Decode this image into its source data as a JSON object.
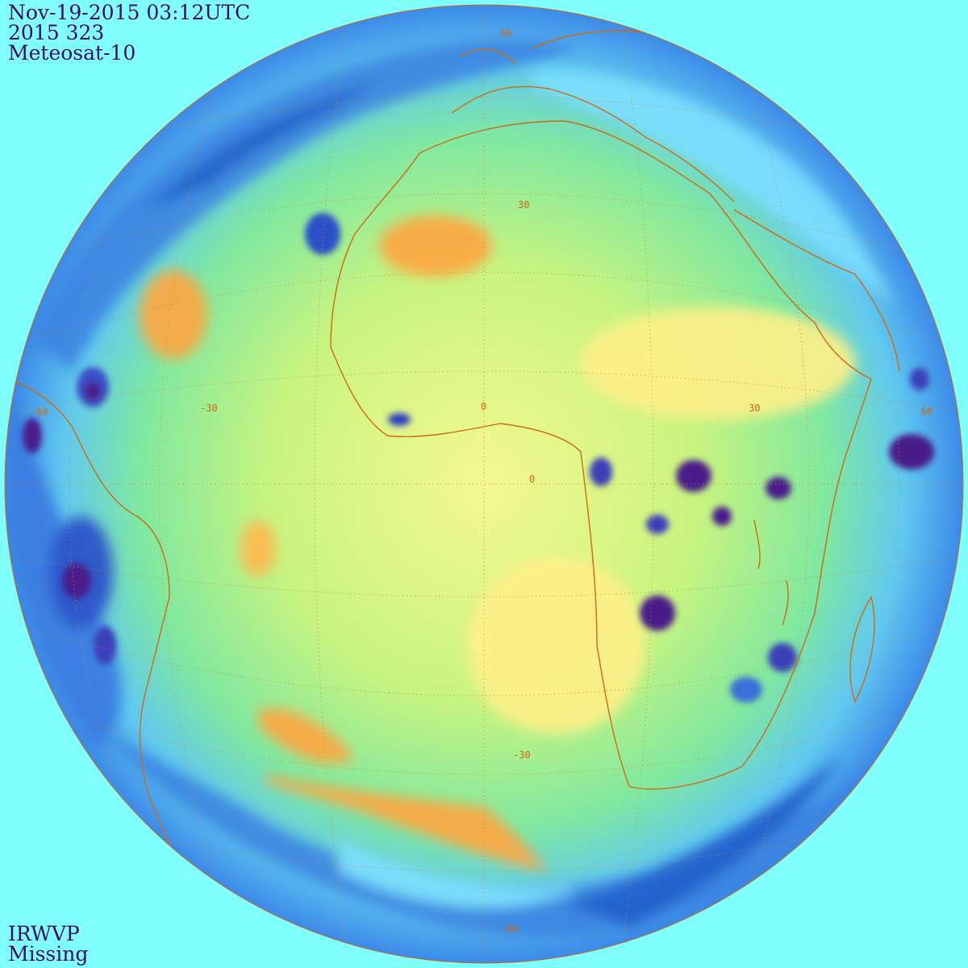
{
  "header": {
    "datetime": "Nov-19-2015 03:12UTC",
    "julian": "2015 323",
    "satellite": "Meteosat-10"
  },
  "footer": {
    "product": "IRWVP",
    "status": "Missing"
  },
  "grid_labels": {
    "lat_n60": "60",
    "lat_n30": "30",
    "lat_eq": "0",
    "lat_s30": "-30",
    "lat_s60": "-60",
    "lon_w60": "-60",
    "lon_w30": "-30",
    "lon_0": "0",
    "lon_e30": "30",
    "lon_e60": "60"
  },
  "colors": {
    "background": "#80ffff",
    "text": "#3a0a6e",
    "coastline": "#d06a10",
    "graticule": "#d08a30",
    "very_cold": "#4a1a8a",
    "cold": "#2060d8",
    "cool": "#60c8ff",
    "mid": "#80f070",
    "warm": "#ffff80",
    "hot": "#ffa030"
  }
}
